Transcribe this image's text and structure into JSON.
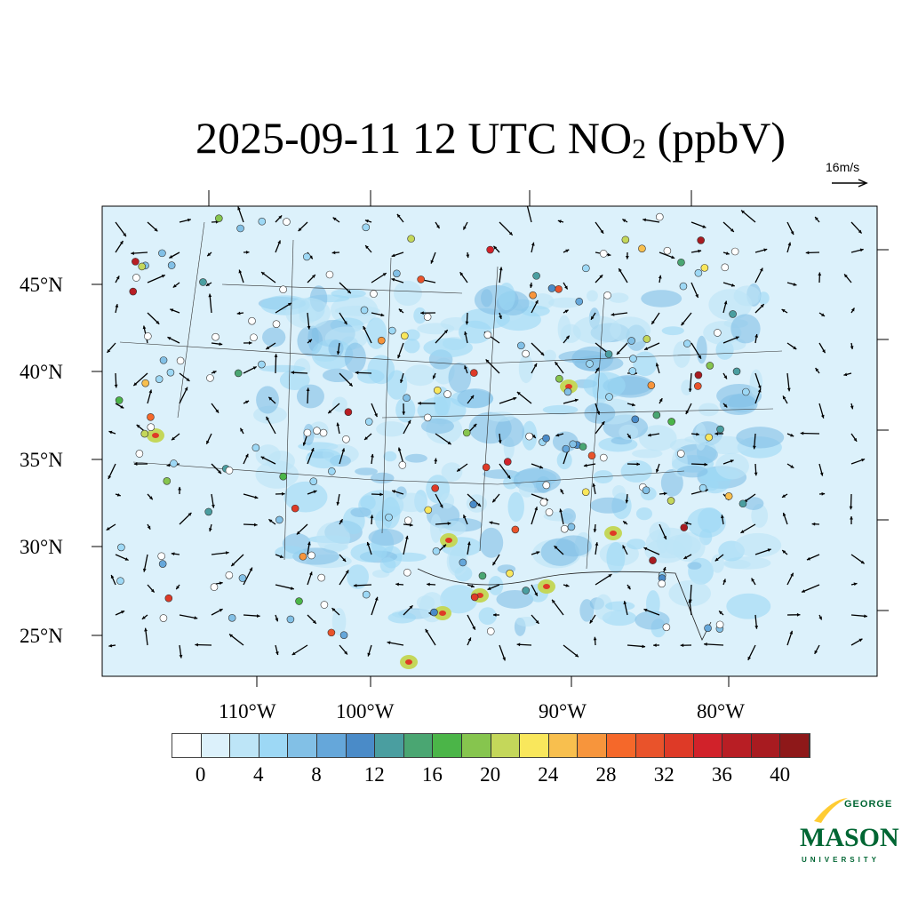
{
  "title": {
    "date": "2025-09-11 12 UTC NO",
    "sub": "2",
    "unit": " (ppbV)"
  },
  "reference_vector": {
    "label": "16m/s"
  },
  "axes": {
    "longitude_labels": [
      "110°W",
      "100°W",
      "90°W",
      "80°W"
    ],
    "latitude_labels": [
      "45°N",
      "40°N",
      "35°N",
      "30°N",
      "25°N"
    ]
  },
  "colorbar": {
    "colors": [
      "#ffffff",
      "#dcf1fb",
      "#bde5f7",
      "#9dd8f5",
      "#82c0e6",
      "#65a7da",
      "#4a8bc8",
      "#4a9ea0",
      "#4aa672",
      "#4bb548",
      "#86c54e",
      "#c4d75a",
      "#f9e75c",
      "#f8bf4e",
      "#f7953c",
      "#f5682a",
      "#e9532b",
      "#de3a27",
      "#d1222a",
      "#b81e24",
      "#a81b20",
      "#8e1819"
    ],
    "tick_labels": [
      "0",
      "4",
      "8",
      "12",
      "16",
      "20",
      "24",
      "28",
      "32",
      "36",
      "40"
    ]
  },
  "logo": {
    "line1": "GEORGE",
    "line2": "MASON",
    "line3": "UNIVERSITY",
    "green": "#006633",
    "gold": "#ffcc33"
  }
}
